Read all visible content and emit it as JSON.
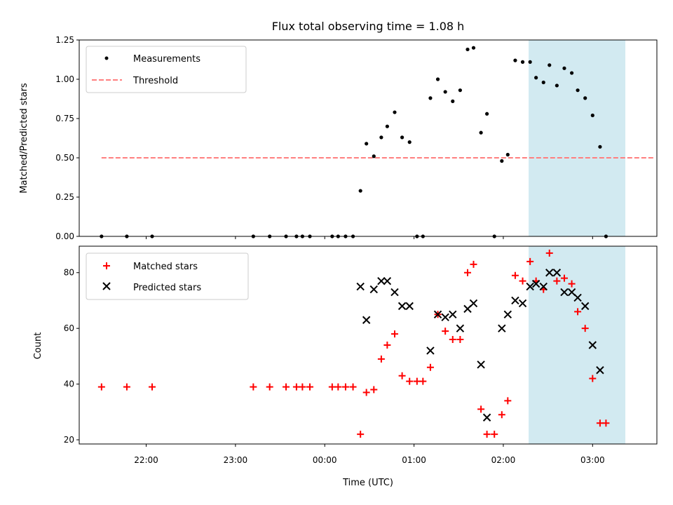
{
  "chart_data": [
    {
      "type": "scatter",
      "title": "Flux total observing time = 1.08 h",
      "xlabel": "",
      "ylabel": "Matched/Predicted stars",
      "ylim": [
        0,
        1.25
      ],
      "yticks": [
        "0.00",
        "0.25",
        "0.50",
        "0.75",
        "1.00",
        "1.25"
      ],
      "xlim": [
        21.25,
        3.72
      ],
      "legend_position": "top-left",
      "threshold": {
        "name": "Threshold",
        "y": 0.5,
        "x_start": "21:30",
        "x_end": "03:42",
        "color": "#ff7f7f"
      },
      "highlight": {
        "x_start": "02:17",
        "x_end": "03:22",
        "color": "#add8e6"
      },
      "series": [
        {
          "name": "Measurements",
          "color": "#000000",
          "points": [
            [
              "21:30",
              0
            ],
            [
              "21:47",
              0
            ],
            [
              "22:04",
              0
            ],
            [
              "23:12",
              0
            ],
            [
              "23:23",
              0
            ],
            [
              "23:34",
              0
            ],
            [
              "23:41",
              0
            ],
            [
              "23:45",
              0
            ],
            [
              "23:50",
              0
            ],
            [
              "00:05",
              0
            ],
            [
              "00:09",
              0
            ],
            [
              "00:14",
              0
            ],
            [
              "00:19",
              0
            ],
            [
              "00:24",
              0.29
            ],
            [
              "00:28",
              0.59
            ],
            [
              "00:33",
              0.51
            ],
            [
              "00:38",
              0.63
            ],
            [
              "00:42",
              0.7
            ],
            [
              "00:47",
              0.79
            ],
            [
              "00:52",
              0.63
            ],
            [
              "00:57",
              0.6
            ],
            [
              "01:02",
              0
            ],
            [
              "01:06",
              0
            ],
            [
              "01:11",
              0.88
            ],
            [
              "01:16",
              1.0
            ],
            [
              "01:21",
              0.92
            ],
            [
              "01:26",
              0.86
            ],
            [
              "01:31",
              0.93
            ],
            [
              "01:36",
              1.19
            ],
            [
              "01:40",
              1.2
            ],
            [
              "01:45",
              0.66
            ],
            [
              "01:49",
              0.78
            ],
            [
              "01:54",
              0
            ],
            [
              "01:59",
              0.48
            ],
            [
              "02:03",
              0.52
            ],
            [
              "02:08",
              1.12
            ],
            [
              "02:13",
              1.11
            ],
            [
              "02:18",
              1.11
            ],
            [
              "02:22",
              1.01
            ],
            [
              "02:27",
              0.98
            ],
            [
              "02:31",
              1.09
            ],
            [
              "02:36",
              0.96
            ],
            [
              "02:41",
              1.07
            ],
            [
              "02:46",
              1.04
            ],
            [
              "02:50",
              0.93
            ],
            [
              "02:55",
              0.88
            ],
            [
              "03:00",
              0.77
            ],
            [
              "03:05",
              0.57
            ],
            [
              "03:09",
              0
            ]
          ]
        }
      ]
    },
    {
      "type": "scatter",
      "title": "",
      "xlabel": "Time (UTC)",
      "ylabel": "Count",
      "ylim": [
        18.5,
        89.5
      ],
      "yticks": [
        "20",
        "40",
        "60",
        "80"
      ],
      "xticks": [
        "22:00",
        "23:00",
        "00:00",
        "01:00",
        "02:00",
        "03:00"
      ],
      "xlim": [
        21.25,
        3.72
      ],
      "legend_position": "top-left",
      "highlight": {
        "x_start": "02:17",
        "x_end": "03:22",
        "color": "#add8e6"
      },
      "series": [
        {
          "name": "Matched stars",
          "color": "#ff0000",
          "marker": "plus",
          "points": [
            [
              "21:30",
              39
            ],
            [
              "21:47",
              39
            ],
            [
              "22:04",
              39
            ],
            [
              "23:12",
              39
            ],
            [
              "23:23",
              39
            ],
            [
              "23:34",
              39
            ],
            [
              "23:41",
              39
            ],
            [
              "23:45",
              39
            ],
            [
              "23:50",
              39
            ],
            [
              "00:05",
              39
            ],
            [
              "00:09",
              39
            ],
            [
              "00:14",
              39
            ],
            [
              "00:19",
              39
            ],
            [
              "00:24",
              22
            ],
            [
              "00:28",
              37
            ],
            [
              "00:33",
              38
            ],
            [
              "00:38",
              49
            ],
            [
              "00:42",
              54
            ],
            [
              "00:47",
              58
            ],
            [
              "00:52",
              43
            ],
            [
              "00:57",
              41
            ],
            [
              "01:02",
              41
            ],
            [
              "01:06",
              41
            ],
            [
              "01:11",
              46
            ],
            [
              "01:16",
              65
            ],
            [
              "01:21",
              59
            ],
            [
              "01:26",
              56
            ],
            [
              "01:31",
              56
            ],
            [
              "01:36",
              80
            ],
            [
              "01:40",
              83
            ],
            [
              "01:45",
              31
            ],
            [
              "01:49",
              22
            ],
            [
              "01:54",
              22
            ],
            [
              "01:59",
              29
            ],
            [
              "02:03",
              34
            ],
            [
              "02:08",
              79
            ],
            [
              "02:13",
              77
            ],
            [
              "02:18",
              84
            ],
            [
              "02:22",
              77
            ],
            [
              "02:27",
              74
            ],
            [
              "02:31",
              87
            ],
            [
              "02:36",
              77
            ],
            [
              "02:41",
              78
            ],
            [
              "02:46",
              76
            ],
            [
              "02:50",
              66
            ],
            [
              "02:55",
              60
            ],
            [
              "03:00",
              42
            ],
            [
              "03:05",
              26
            ],
            [
              "03:09",
              26
            ]
          ]
        },
        {
          "name": "Predicted stars",
          "color": "#000000",
          "marker": "cross",
          "points": [
            [
              "00:24",
              75
            ],
            [
              "00:28",
              63
            ],
            [
              "00:33",
              74
            ],
            [
              "00:38",
              77
            ],
            [
              "00:42",
              77
            ],
            [
              "00:47",
              73
            ],
            [
              "00:52",
              68
            ],
            [
              "00:57",
              68
            ],
            [
              "01:11",
              52
            ],
            [
              "01:16",
              65
            ],
            [
              "01:21",
              64
            ],
            [
              "01:26",
              65
            ],
            [
              "01:31",
              60
            ],
            [
              "01:36",
              67
            ],
            [
              "01:40",
              69
            ],
            [
              "01:45",
              47
            ],
            [
              "01:49",
              28
            ],
            [
              "01:59",
              60
            ],
            [
              "02:03",
              65
            ],
            [
              "02:08",
              70
            ],
            [
              "02:13",
              69
            ],
            [
              "02:18",
              75
            ],
            [
              "02:22",
              76
            ],
            [
              "02:27",
              75
            ],
            [
              "02:31",
              80
            ],
            [
              "02:36",
              80
            ],
            [
              "02:41",
              73
            ],
            [
              "02:46",
              73
            ],
            [
              "02:50",
              71
            ],
            [
              "02:55",
              68
            ],
            [
              "03:00",
              54
            ],
            [
              "03:05",
              45
            ]
          ]
        }
      ]
    }
  ]
}
